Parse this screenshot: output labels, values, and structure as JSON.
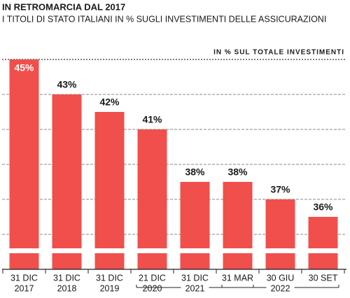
{
  "chart_data": {
    "type": "bar",
    "title": "IN RETROMARCIA DAL 2017",
    "subtitle": "I TITOLI DI STATO ITALIANI IN % SUGLI INVESTIMENTI DELLE ASSICURAZIONI",
    "annotation": "IN % SUL TOTALE INVESTIMENTI",
    "categories": [
      "31 DIC",
      "31 DIC",
      "31 DIC",
      "21 DIC",
      "31 DIC",
      "31 MAR",
      "30 GIU",
      "30 SET"
    ],
    "years": [
      "2017",
      "2018",
      "2019",
      "2020",
      "2021",
      null,
      "2022",
      null
    ],
    "values": [
      45,
      43,
      42,
      41,
      38,
      38,
      37,
      36
    ],
    "value_labels": [
      "45%",
      "43%",
      "42%",
      "41%",
      "38%",
      "38%",
      "37%",
      "36%"
    ],
    "color": "#f04f4c",
    "ylim": [
      33,
      45
    ],
    "yticks": [
      35,
      37,
      39,
      41,
      43,
      45
    ],
    "grid": true
  }
}
